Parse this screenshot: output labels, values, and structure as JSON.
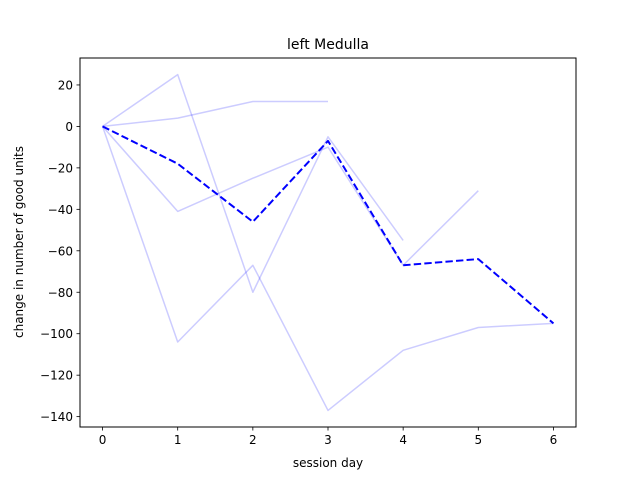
{
  "chart_data": {
    "type": "line",
    "title": "left Medulla",
    "xlabel": "session day",
    "ylabel": "change in number of good units",
    "xlim": [
      -0.3,
      6.3
    ],
    "ylim": [
      -145,
      33
    ],
    "x_ticks": [
      0,
      1,
      2,
      3,
      4,
      5,
      6
    ],
    "y_ticks": [
      20,
      0,
      -20,
      -40,
      -60,
      -80,
      -100,
      -120,
      -140
    ],
    "grid": false,
    "legend": "none",
    "colors": {
      "individual": "#0000ff",
      "mean": "#0000ff"
    },
    "series": [
      {
        "role": "individual",
        "style": "solid",
        "x": [
          0,
          1,
          2,
          3
        ],
        "values": [
          0,
          4,
          12,
          12
        ]
      },
      {
        "role": "individual",
        "style": "solid",
        "x": [
          0,
          1,
          2,
          3,
          4
        ],
        "values": [
          0,
          25,
          -80,
          -5,
          -55
        ]
      },
      {
        "role": "individual",
        "style": "solid",
        "x": [
          0,
          1,
          2,
          3,
          4,
          5
        ],
        "values": [
          0,
          -41,
          -25,
          -10,
          -67,
          -31
        ]
      },
      {
        "role": "individual",
        "style": "solid",
        "x": [
          0,
          1,
          2,
          3,
          4,
          5,
          6
        ],
        "values": [
          0,
          -104,
          -67,
          -137,
          -108,
          -97,
          -95
        ]
      },
      {
        "role": "mean",
        "style": "dashed",
        "x": [
          0,
          1,
          2,
          3,
          4,
          5,
          6
        ],
        "values": [
          0,
          -18,
          -46,
          -7,
          -67,
          -64,
          -95
        ]
      }
    ]
  }
}
